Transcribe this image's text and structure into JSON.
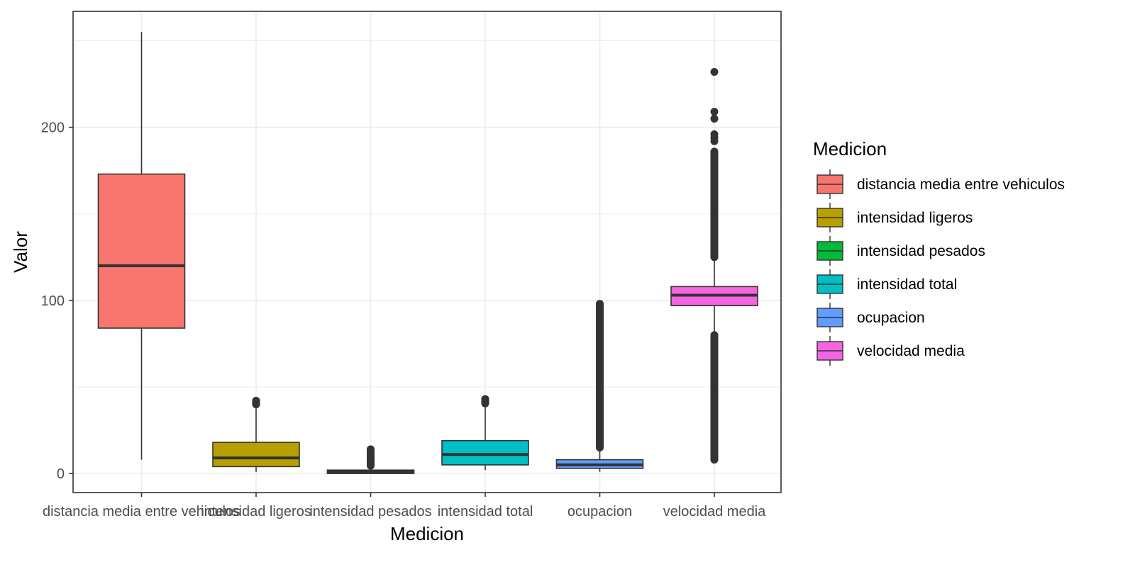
{
  "chart_data": {
    "type": "boxplot",
    "xlabel": "Medicion",
    "ylabel": "Valor",
    "ylim": [
      -11,
      267
    ],
    "yticks": [
      0,
      100,
      200
    ],
    "grid": true,
    "legend": {
      "title": "Medicion",
      "placement": "right"
    },
    "categories": [
      "distancia media entre vehiculos",
      "intensidad ligeros",
      "intensidad pesados",
      "intensidad total",
      "ocupacion",
      "velocidad media"
    ],
    "colors": [
      "#F8766D",
      "#B79F00",
      "#00BA38",
      "#00BFC4",
      "#619CFF",
      "#F564E3"
    ],
    "series": [
      {
        "name": "distancia media entre vehiculos",
        "whisker_low": 8,
        "q1": 84,
        "median": 120,
        "q3": 173,
        "whisker_high": 255,
        "outliers": [],
        "outlier_bands": []
      },
      {
        "name": "intensidad ligeros",
        "whisker_low": 1,
        "q1": 4,
        "median": 9,
        "q3": 18,
        "whisker_high": 39,
        "outliers": [
          40,
          41,
          42
        ],
        "outlier_bands": [
          [
            40,
            42
          ]
        ]
      },
      {
        "name": "intensidad pesados",
        "whisker_low": 0,
        "q1": 0,
        "median": 1,
        "q3": 2,
        "whisker_high": 4,
        "outliers": [
          14
        ],
        "outlier_bands": [
          [
            4.5,
            14
          ]
        ]
      },
      {
        "name": "intensidad total",
        "whisker_low": 2,
        "q1": 5,
        "median": 11,
        "q3": 19,
        "whisker_high": 40,
        "outliers": [
          41,
          42,
          43
        ],
        "outlier_bands": [
          [
            40.5,
            43
          ]
        ]
      },
      {
        "name": "ocupacion",
        "whisker_low": 1,
        "q1": 3,
        "median": 5,
        "q3": 8,
        "whisker_high": 14,
        "outliers": [
          98
        ],
        "outlier_bands": [
          [
            15,
            98
          ]
        ]
      },
      {
        "name": "velocidad media",
        "whisker_low": 82,
        "q1": 97,
        "median": 103,
        "q3": 108,
        "whisker_high": 123,
        "outliers": [
          192,
          194,
          196,
          205,
          209,
          232
        ],
        "outlier_bands": [
          [
            8,
            80
          ],
          [
            125,
            186
          ]
        ]
      }
    ]
  }
}
